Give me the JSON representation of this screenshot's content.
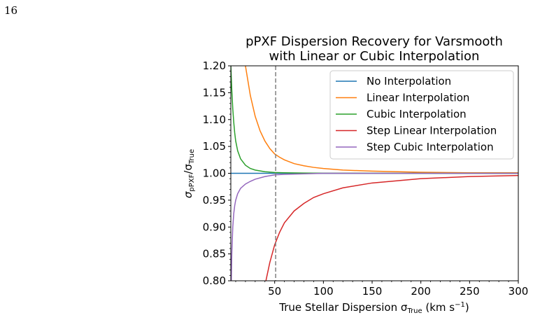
{
  "page": {
    "number": "16"
  },
  "chart_data": {
    "type": "line",
    "title_line1": "pPXF Dispersion Recovery for Varsmooth",
    "title_line2": "with Linear or Cubic Interpolation",
    "xlabel": "True Stellar Dispersion σ",
    "xlabel_sub": "True",
    "xlabel_unit_pre": " (km s",
    "xlabel_unit_sup": "−1",
    "xlabel_unit_post": ")",
    "ylabel_sigma": "σ",
    "ylabel_num_sub": "pPXF",
    "ylabel_slash": "/σ",
    "ylabel_den_sub": "True",
    "xlim": [
      5,
      300
    ],
    "ylim": [
      0.8,
      1.2
    ],
    "xticks": [
      50,
      100,
      150,
      200,
      250,
      300
    ],
    "yticks": [
      0.8,
      0.85,
      0.9,
      0.95,
      1.0,
      1.05,
      1.1,
      1.15,
      1.2
    ],
    "vline": {
      "x": 51,
      "color": "#808080",
      "style": "dashed"
    },
    "legend_position": "top-right",
    "grid": false,
    "series": [
      {
        "name": "No Interpolation",
        "color": "#1f77b4",
        "x": [
          5,
          300
        ],
        "y": [
          1.0,
          1.0
        ]
      },
      {
        "name": "Linear Interpolation",
        "color": "#ff7f0e",
        "x": [
          20,
          22,
          25,
          30,
          35,
          40,
          45,
          50,
          55,
          60,
          70,
          80,
          90,
          100,
          120,
          150,
          200,
          250,
          300
        ],
        "y": [
          1.2,
          1.178,
          1.145,
          1.106,
          1.079,
          1.06,
          1.046,
          1.036,
          1.03,
          1.025,
          1.018,
          1.014,
          1.011,
          1.009,
          1.006,
          1.004,
          1.002,
          1.001,
          1.001
        ]
      },
      {
        "name": "Cubic Interpolation",
        "color": "#2ca02c",
        "x": [
          5,
          6,
          7,
          8,
          9,
          10,
          12,
          15,
          20,
          25,
          30,
          40,
          50,
          60,
          80,
          100,
          150,
          300
        ],
        "y": [
          1.2,
          1.155,
          1.12,
          1.095,
          1.075,
          1.06,
          1.042,
          1.027,
          1.015,
          1.009,
          1.006,
          1.003,
          1.0015,
          1.001,
          1.0005,
          1.0002,
          1.0001,
          1.0
        ]
      },
      {
        "name": "Step Linear Interpolation",
        "color": "#d62728",
        "x": [
          41,
          45,
          50,
          55,
          60,
          70,
          80,
          90,
          100,
          120,
          150,
          200,
          250,
          300
        ],
        "y": [
          0.8,
          0.834,
          0.867,
          0.89,
          0.908,
          0.93,
          0.944,
          0.955,
          0.962,
          0.973,
          0.982,
          0.99,
          0.994,
          0.996
        ]
      },
      {
        "name": "Step Cubic Interpolation",
        "color": "#9467bd",
        "x": [
          5.5,
          6,
          7,
          8,
          9,
          10,
          12,
          15,
          20,
          25,
          30,
          40,
          50,
          60,
          80,
          100,
          150,
          300
        ],
        "y": [
          0.8,
          0.85,
          0.9,
          0.925,
          0.94,
          0.95,
          0.962,
          0.972,
          0.98,
          0.985,
          0.989,
          0.994,
          0.997,
          0.998,
          0.999,
          1.0,
          1.0,
          1.0
        ]
      }
    ]
  }
}
